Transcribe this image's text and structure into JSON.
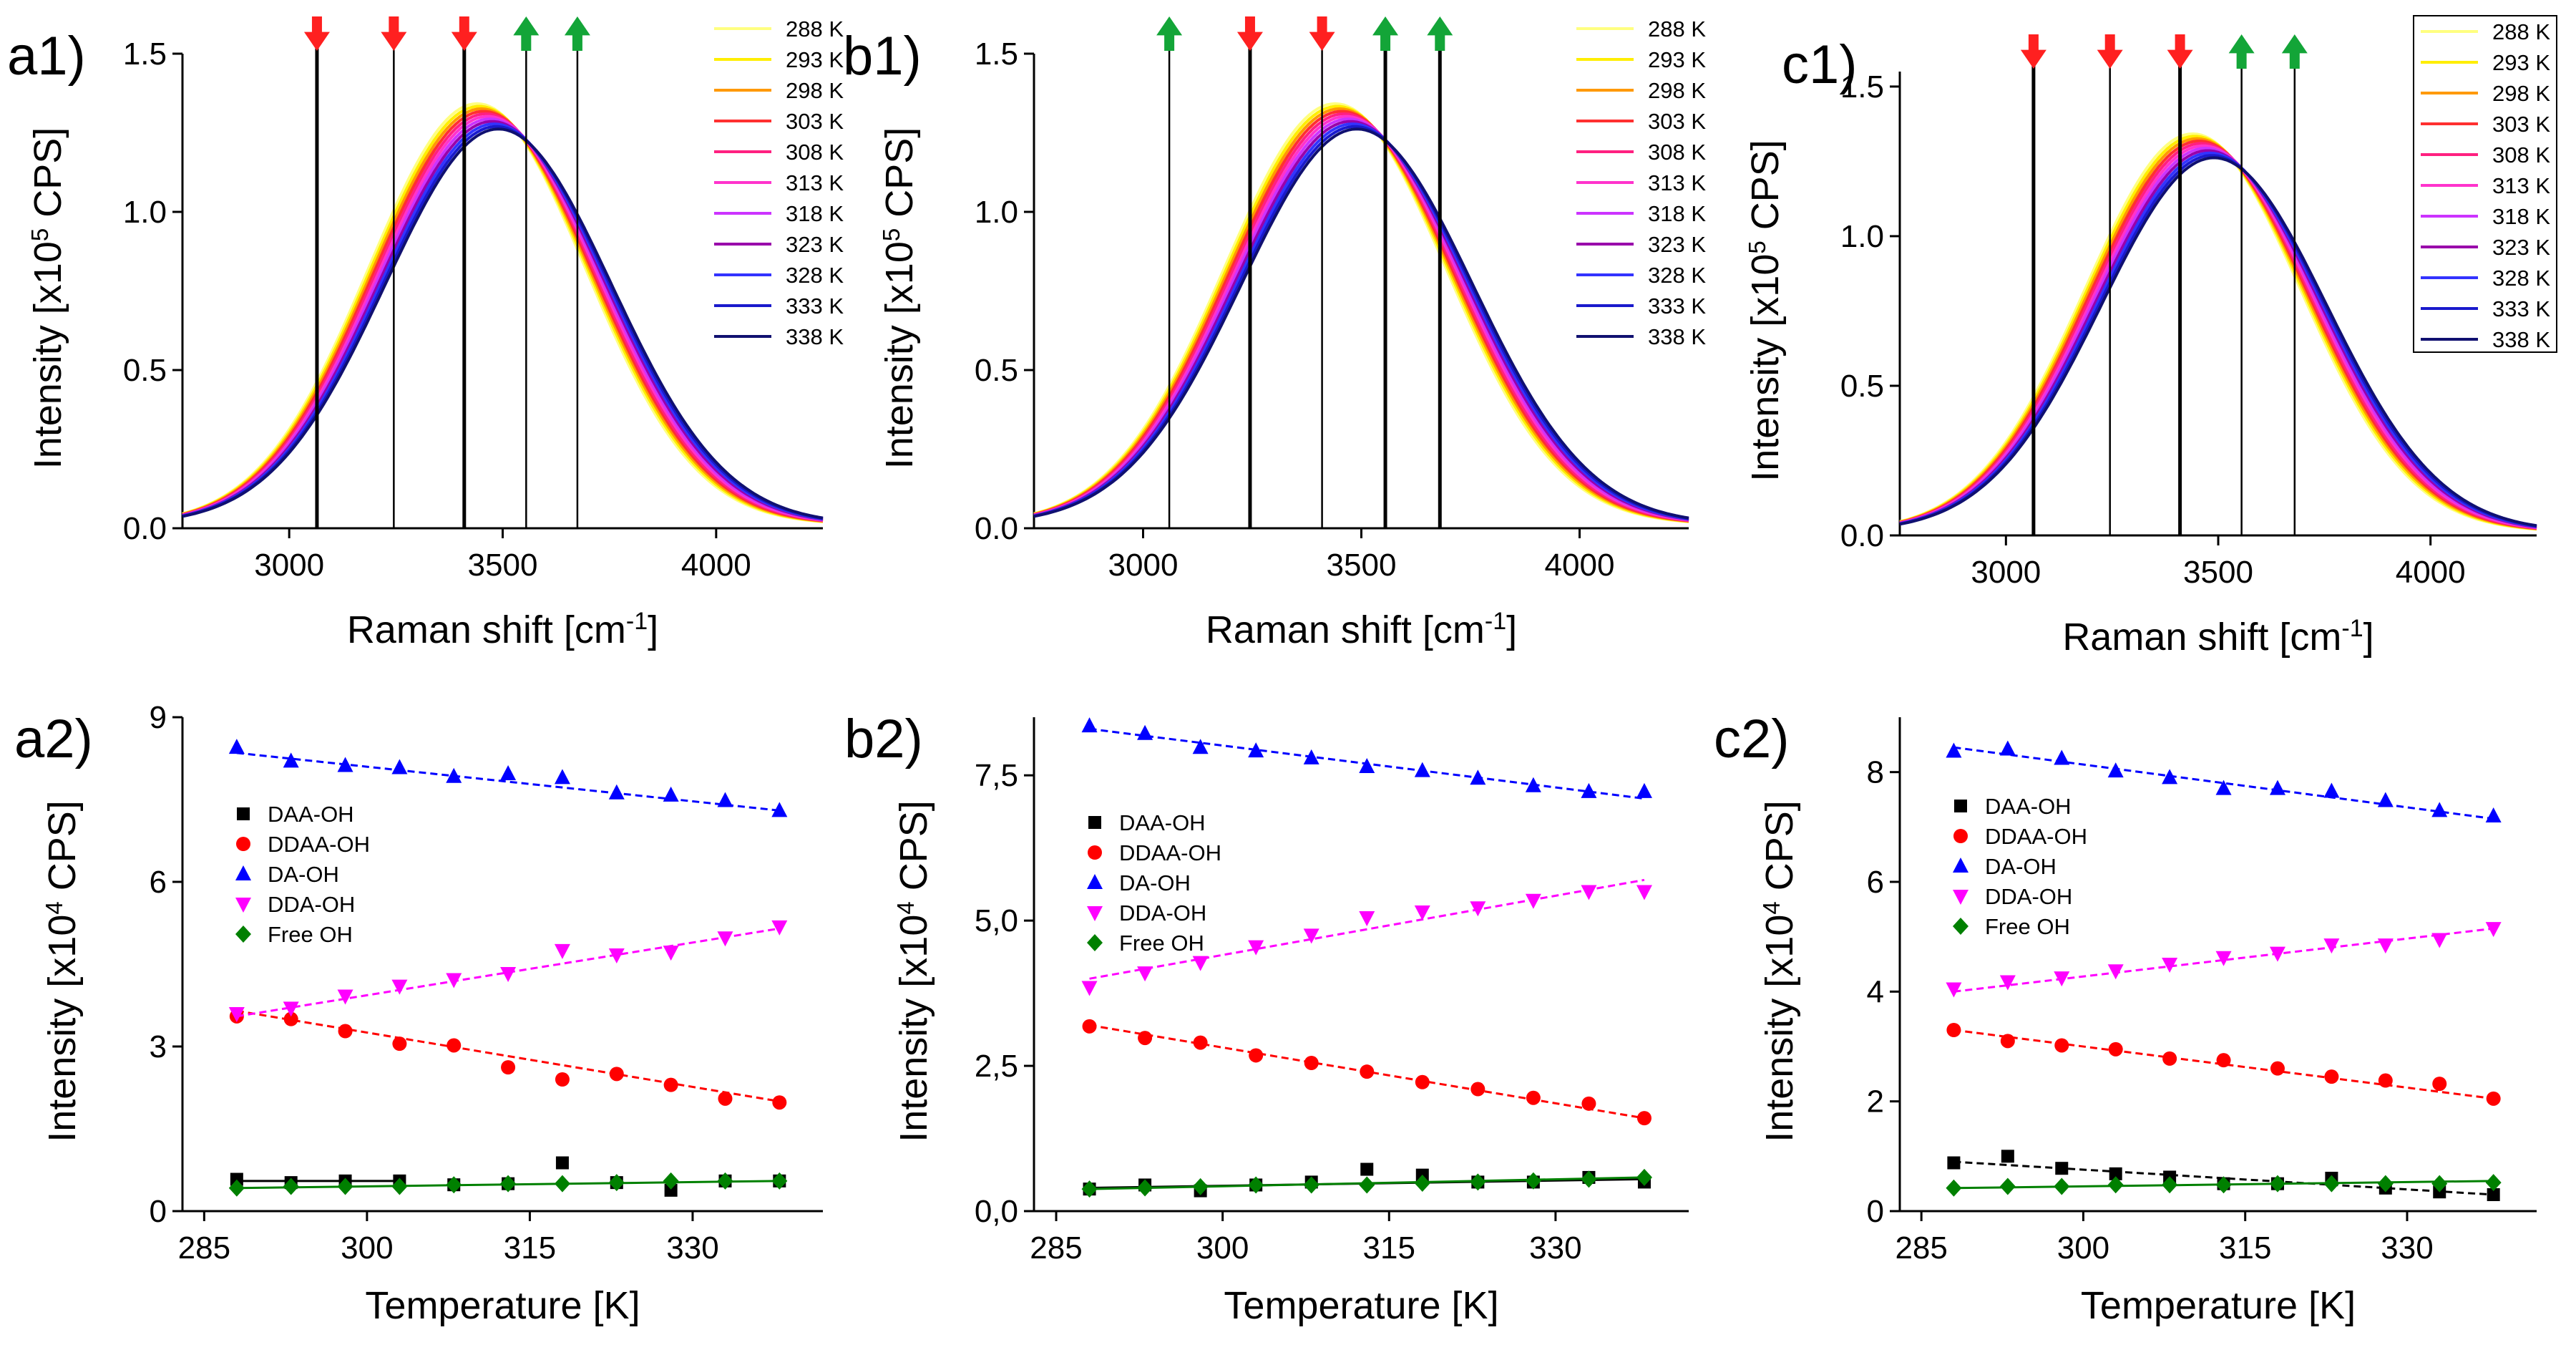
{
  "figure": {
    "axis_label_spectra_x": "Raman shift [cm",
    "axis_label_spectra_x_sup": "-1",
    "axis_label_spectra_x_end": "]",
    "axis_label_spectra_y_pre": "Intensity [x10",
    "axis_label_spectra_y_sup": "5",
    "axis_label_spectra_y_post": " CPS]",
    "axis_label_temp_x": "Temperature [K]",
    "axis_label_temp_y_pre": "Intensity [x10",
    "axis_label_temp_y_sup": "4",
    "axis_label_temp_y_post": " CPS]",
    "arrow_colors": {
      "down": "#ff2020",
      "up": "#13a538"
    },
    "legend_temperatures": [
      "288 K",
      "293 K",
      "298 K",
      "303 K",
      "308 K",
      "313 K",
      "318 K",
      "323 K",
      "328 K",
      "333 K",
      "338 K"
    ],
    "temperature_colors": [
      "#ffff80",
      "#ffee00",
      "#ff9900",
      "#ff3030",
      "#ff2080",
      "#ff33cc",
      "#cc33ff",
      "#9900aa",
      "#3333ff",
      "#1a1acc",
      "#101070"
    ],
    "series_colors": {
      "DAA-OH": "#000000",
      "DDAA-OH": "#ff0000",
      "DA-OH": "#0000ff",
      "DDA-OH": "#ff00ff",
      "Free OH": "#008000"
    }
  },
  "chart_data": [
    {
      "panel": "a1",
      "label": "a1)",
      "type": "line",
      "xlim": [
        2750,
        4250
      ],
      "ylim": [
        0,
        1.5
      ],
      "xticks": [
        "3000",
        "3500",
        "4000"
      ],
      "xtick_values": [
        3000,
        3500,
        4000
      ],
      "yticks": [
        "0.0",
        "0.5",
        "1.0",
        "1.5"
      ],
      "ytick_values": [
        0,
        0.5,
        1.0,
        1.5
      ],
      "spectra": {
        "peak_start": 3440,
        "peak_end": 3490,
        "amp_start": 1.33,
        "amp_end": 1.25,
        "sigma": 255
      },
      "markers": [
        {
          "x": 3065,
          "dir": "down",
          "thick": true
        },
        {
          "x": 3245,
          "dir": "down",
          "thick": false
        },
        {
          "x": 3410,
          "dir": "down",
          "thick": true
        },
        {
          "x": 3555,
          "dir": "up",
          "thick": false
        },
        {
          "x": 3675,
          "dir": "up",
          "thick": false
        }
      ]
    },
    {
      "panel": "b1",
      "label": "b1)",
      "type": "line",
      "xlim": [
        2750,
        4250
      ],
      "ylim": [
        0,
        1.5
      ],
      "xticks": [
        "3000",
        "3500",
        "4000"
      ],
      "xtick_values": [
        3000,
        3500,
        4000
      ],
      "yticks": [
        "0.0",
        "0.5",
        "1.0",
        "1.5"
      ],
      "ytick_values": [
        0,
        0.5,
        1.0,
        1.5
      ],
      "spectra": {
        "peak_start": 3440,
        "peak_end": 3490,
        "amp_start": 1.33,
        "amp_end": 1.25,
        "sigma": 255
      },
      "markers": [
        {
          "x": 3060,
          "dir": "up",
          "thick": false
        },
        {
          "x": 3245,
          "dir": "down",
          "thick": true
        },
        {
          "x": 3410,
          "dir": "down",
          "thick": false
        },
        {
          "x": 3555,
          "dir": "up",
          "thick": true
        },
        {
          "x": 3680,
          "dir": "up",
          "thick": true
        }
      ]
    },
    {
      "panel": "c1",
      "label": "c1)",
      "type": "line",
      "xlim": [
        2750,
        4250
      ],
      "ylim": [
        0,
        1.55
      ],
      "xticks": [
        "3000",
        "3500",
        "4000"
      ],
      "xtick_values": [
        3000,
        3500,
        4000
      ],
      "yticks": [
        "0.0",
        "0.5",
        "1.0",
        "1.5"
      ],
      "ytick_values": [
        0,
        0.5,
        1.0,
        1.5
      ],
      "spectra": {
        "peak_start": 3440,
        "peak_end": 3490,
        "amp_start": 1.33,
        "amp_end": 1.25,
        "sigma": 255
      },
      "markers": [
        {
          "x": 3065,
          "dir": "down",
          "thick": true
        },
        {
          "x": 3245,
          "dir": "down",
          "thick": false
        },
        {
          "x": 3410,
          "dir": "down",
          "thick": true
        },
        {
          "x": 3555,
          "dir": "up",
          "thick": false
        },
        {
          "x": 3680,
          "dir": "up",
          "thick": false
        }
      ]
    },
    {
      "panel": "a2",
      "label": "a2)",
      "type": "scatter",
      "xlim": [
        283,
        342
      ],
      "ylim": [
        0,
        9
      ],
      "xticks": [
        "285",
        "300",
        "315",
        "330"
      ],
      "xtick_values": [
        285,
        300,
        315,
        330
      ],
      "yticks": [
        "0",
        "3",
        "6",
        "9"
      ],
      "ytick_values": [
        0,
        3,
        6,
        9
      ],
      "x": [
        288,
        293,
        298,
        303,
        308,
        313,
        318,
        323,
        328,
        333,
        338
      ],
      "series": [
        {
          "name": "DAA-OH",
          "marker": "square",
          "values": [
            0.58,
            0.52,
            0.55,
            0.55,
            0.48,
            0.5,
            0.88,
            0.52,
            0.38,
            0.55,
            0.55
          ],
          "fit": [
            [
              288,
              0.55
            ],
            [
              303,
              0.55
            ]
          ],
          "fit_style": "solid"
        },
        {
          "name": "DDAA-OH",
          "marker": "circle",
          "values": [
            3.55,
            3.5,
            3.28,
            3.05,
            3.02,
            2.62,
            2.4,
            2.5,
            2.3,
            2.05,
            1.98
          ],
          "fit": [
            [
              288,
              3.65
            ],
            [
              338,
              2.0
            ]
          ],
          "fit_style": "dashed"
        },
        {
          "name": "DA-OH",
          "marker": "triangle-up",
          "values": [
            8.45,
            8.2,
            8.12,
            8.08,
            7.92,
            7.97,
            7.9,
            7.62,
            7.58,
            7.48,
            7.3
          ],
          "fit": [
            [
              288,
              8.35
            ],
            [
              338,
              7.3
            ]
          ],
          "fit_style": "dashed"
        },
        {
          "name": "DDA-OH",
          "marker": "triangle-down",
          "values": [
            3.6,
            3.7,
            3.92,
            4.1,
            4.22,
            4.33,
            4.75,
            4.67,
            4.72,
            4.98,
            5.18
          ],
          "fit": [
            [
              288,
              3.55
            ],
            [
              338,
              5.15
            ]
          ],
          "fit_style": "dashed"
        },
        {
          "name": "Free OH",
          "marker": "diamond",
          "values": [
            0.42,
            0.45,
            0.45,
            0.45,
            0.48,
            0.5,
            0.5,
            0.52,
            0.55,
            0.55,
            0.55
          ],
          "fit": [
            [
              288,
              0.42
            ],
            [
              338,
              0.55
            ]
          ],
          "fit_style": "solid"
        }
      ],
      "legend": [
        "DAA-OH",
        "DDAA-OH",
        "DA-OH",
        "DDA-OH",
        "Free OH"
      ]
    },
    {
      "panel": "b2",
      "label": "b2)",
      "type": "scatter",
      "xlim": [
        283,
        342
      ],
      "ylim": [
        0,
        8.5
      ],
      "xticks": [
        "285",
        "300",
        "315",
        "330"
      ],
      "xtick_values": [
        285,
        300,
        315,
        330
      ],
      "yticks": [
        "0,0",
        "2,5",
        "5,0",
        "7,5"
      ],
      "ytick_values": [
        0,
        2.5,
        5.0,
        7.5
      ],
      "x": [
        288,
        293,
        298,
        303,
        308,
        313,
        318,
        323,
        328,
        333,
        338
      ],
      "series": [
        {
          "name": "DAA-OH",
          "marker": "square",
          "values": [
            0.38,
            0.45,
            0.35,
            0.45,
            0.5,
            0.72,
            0.62,
            0.5,
            0.5,
            0.58,
            0.5
          ],
          "fit": [
            [
              288,
              0.4
            ],
            [
              338,
              0.55
            ]
          ],
          "fit_style": "solid"
        },
        {
          "name": "DDAA-OH",
          "marker": "circle",
          "values": [
            3.18,
            2.98,
            2.9,
            2.68,
            2.55,
            2.4,
            2.22,
            2.1,
            1.95,
            1.85,
            1.6
          ],
          "fit": [
            [
              288,
              3.2
            ],
            [
              338,
              1.6
            ]
          ],
          "fit_style": "dashed"
        },
        {
          "name": "DA-OH",
          "marker": "triangle-up",
          "values": [
            8.35,
            8.22,
            7.98,
            7.92,
            7.8,
            7.65,
            7.58,
            7.45,
            7.32,
            7.22,
            7.22
          ],
          "fit": [
            [
              288,
              8.3
            ],
            [
              338,
              7.1
            ]
          ],
          "fit_style": "dashed"
        },
        {
          "name": "DDA-OH",
          "marker": "triangle-down",
          "values": [
            3.85,
            4.1,
            4.28,
            4.55,
            4.75,
            5.05,
            5.15,
            5.22,
            5.35,
            5.5,
            5.5
          ],
          "fit": [
            [
              288,
              4.0
            ],
            [
              338,
              5.7
            ]
          ],
          "fit_style": "dashed"
        },
        {
          "name": "Free OH",
          "marker": "diamond",
          "values": [
            0.38,
            0.4,
            0.42,
            0.45,
            0.45,
            0.45,
            0.48,
            0.5,
            0.52,
            0.55,
            0.58
          ],
          "fit": [
            [
              288,
              0.38
            ],
            [
              338,
              0.58
            ]
          ],
          "fit_style": "solid"
        }
      ],
      "legend": [
        "DAA-OH",
        "DDAA-OH",
        "DA-OH",
        "DDA-OH",
        "Free OH"
      ]
    },
    {
      "panel": "c2",
      "label": "c2)",
      "type": "scatter",
      "xlim": [
        283,
        342
      ],
      "ylim": [
        0,
        9
      ],
      "xticks": [
        "285",
        "300",
        "315",
        "330"
      ],
      "xtick_values": [
        285,
        300,
        315,
        330
      ],
      "yticks": [
        "0",
        "2",
        "4",
        "6",
        "8"
      ],
      "ytick_values": [
        0,
        2,
        4,
        6,
        8
      ],
      "x": [
        288,
        293,
        298,
        303,
        308,
        313,
        318,
        323,
        328,
        333,
        338
      ],
      "series": [
        {
          "name": "DAA-OH",
          "marker": "square",
          "values": [
            0.88,
            1.0,
            0.78,
            0.68,
            0.62,
            0.5,
            0.5,
            0.6,
            0.42,
            0.35,
            0.3
          ],
          "fit": [
            [
              288,
              0.9
            ],
            [
              338,
              0.3
            ]
          ],
          "fit_style": "dashed"
        },
        {
          "name": "DDAA-OH",
          "marker": "circle",
          "values": [
            3.3,
            3.1,
            3.02,
            2.95,
            2.78,
            2.75,
            2.6,
            2.45,
            2.38,
            2.32,
            2.05
          ],
          "fit": [
            [
              288,
              3.3
            ],
            [
              338,
              2.05
            ]
          ],
          "fit_style": "dashed"
        },
        {
          "name": "DA-OH",
          "marker": "triangle-up",
          "values": [
            8.38,
            8.42,
            8.25,
            8.02,
            7.9,
            7.7,
            7.7,
            7.65,
            7.48,
            7.3,
            7.2
          ],
          "fit": [
            [
              288,
              8.45
            ],
            [
              338,
              7.15
            ]
          ],
          "fit_style": "dashed"
        },
        {
          "name": "DDA-OH",
          "marker": "triangle-down",
          "values": [
            4.05,
            4.18,
            4.25,
            4.38,
            4.5,
            4.62,
            4.7,
            4.85,
            4.85,
            4.95,
            5.15
          ],
          "fit": [
            [
              288,
              4.0
            ],
            [
              338,
              5.15
            ]
          ],
          "fit_style": "dashed"
        },
        {
          "name": "Free OH",
          "marker": "diamond",
          "values": [
            0.42,
            0.45,
            0.45,
            0.48,
            0.48,
            0.48,
            0.5,
            0.5,
            0.5,
            0.5,
            0.52
          ],
          "fit": [
            [
              288,
              0.42
            ],
            [
              338,
              0.55
            ]
          ],
          "fit_style": "solid"
        }
      ],
      "legend": [
        "DAA-OH",
        "DDAA-OH",
        "DA-OH",
        "DDA-OH",
        "Free OH"
      ]
    }
  ]
}
